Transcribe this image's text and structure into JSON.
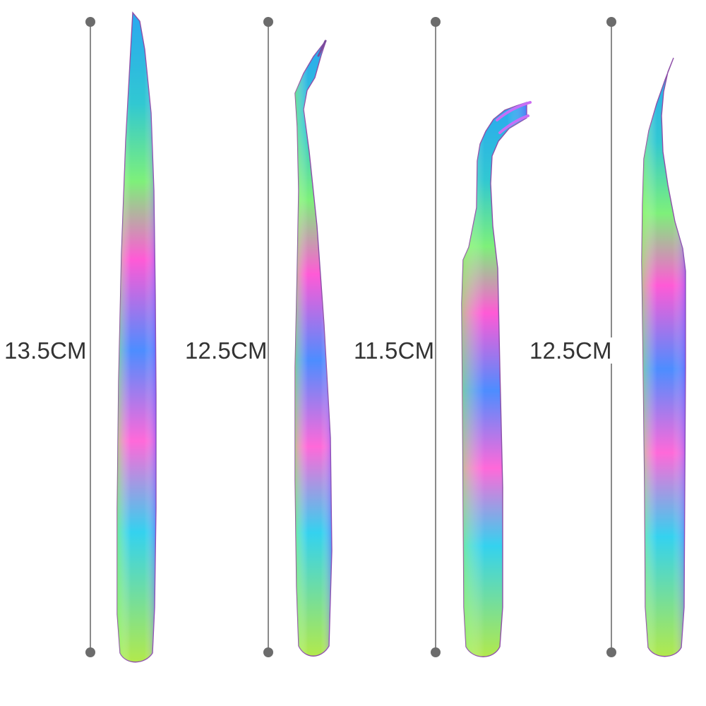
{
  "product": {
    "measurements": [
      {
        "label": "13.5CM"
      },
      {
        "label": "12.5CM"
      },
      {
        "label": "11.5CM"
      },
      {
        "label": "12.5CM"
      }
    ],
    "colors": {
      "background": "#ffffff",
      "guide_line": "#8a8a8a",
      "guide_dot": "#6c6c6c",
      "label_text": "#333333",
      "rainbow": [
        "#2aa8f0",
        "#3fd0a0",
        "#d8e04a",
        "#ff5ad6",
        "#9a56ff"
      ]
    }
  }
}
